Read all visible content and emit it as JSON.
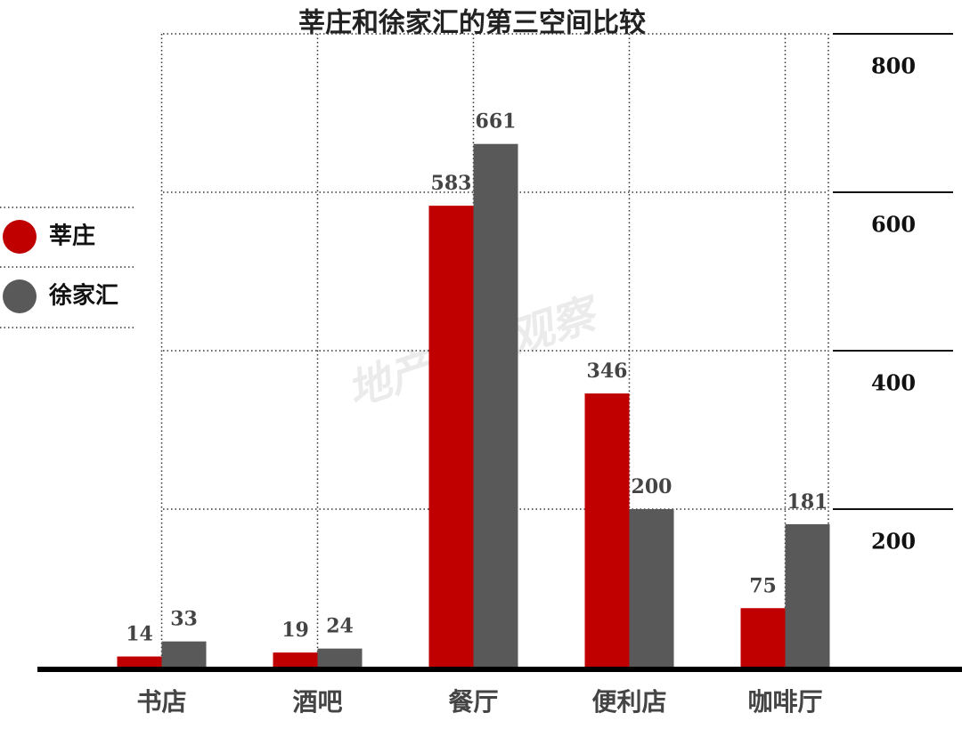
{
  "chart_data": {
    "type": "bar",
    "title": "莘庄和徐家汇的第三空间比较",
    "watermark": "地产热点观察",
    "categories": [
      "书店",
      "酒吧",
      "餐厅",
      "便利店",
      "咖啡厅"
    ],
    "series": [
      {
        "name": "莘庄",
        "color": "#c00000",
        "values": [
          14,
          19,
          583,
          346,
          75
        ]
      },
      {
        "name": "徐家汇",
        "color": "#595959",
        "values": [
          33,
          24,
          661,
          200,
          181
        ]
      }
    ],
    "ylim": [
      0,
      800
    ],
    "yticks": [
      200,
      400,
      600,
      800
    ],
    "grid": true,
    "legend": "left"
  }
}
